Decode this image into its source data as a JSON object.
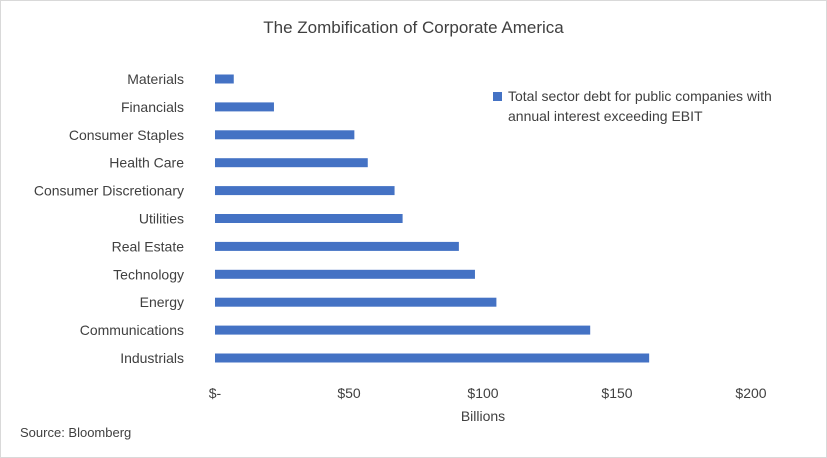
{
  "source": "Source: Bloomberg",
  "colors": {
    "bar": "#4472c4",
    "text": "#404040"
  },
  "chart_data": {
    "type": "bar",
    "orientation": "horizontal",
    "title": "The Zombification of Corporate America",
    "xlabel": "Billions",
    "ylabel": "",
    "categories": [
      "Materials",
      "Financials",
      "Consumer Staples",
      "Health Care",
      "Consumer Discretionary",
      "Utilities",
      "Real Estate",
      "Technology",
      "Energy",
      "Communications",
      "Industrials"
    ],
    "series": [
      {
        "name": "Total sector debt for public companies with annual interest exceeding EBIT",
        "values": [
          7,
          22,
          52,
          57,
          67,
          70,
          91,
          97,
          105,
          140,
          162
        ]
      }
    ],
    "xlim": [
      0,
      200
    ],
    "xticks": [
      0,
      50,
      100,
      150,
      200
    ],
    "xtick_labels": [
      "$-",
      "$50",
      "$100",
      "$150",
      "$200"
    ],
    "grid": false,
    "legend_position": "top-right"
  }
}
